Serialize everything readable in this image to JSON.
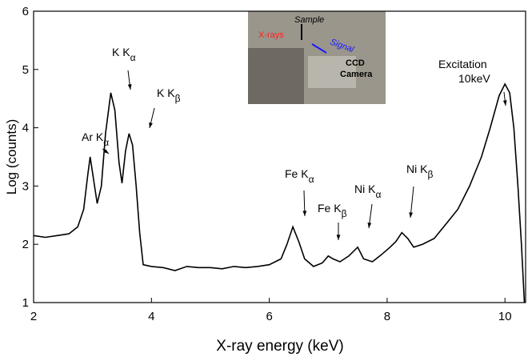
{
  "chart_data": {
    "type": "line",
    "x_label": "X-ray energy (keV)",
    "y_label": "Log (counts)",
    "xlim": [
      2,
      10.35
    ],
    "ylim": [
      1,
      6
    ],
    "xticks": [
      2,
      4,
      6,
      8,
      10
    ],
    "yticks": [
      1,
      2,
      3,
      4,
      5,
      6
    ],
    "series": [
      {
        "color": "#000000",
        "x": [
          2,
          2.2,
          2.4,
          2.6,
          2.75,
          2.85,
          2.92,
          2.96,
          3.02,
          3.08,
          3.15,
          3.22,
          3.31,
          3.38,
          3.45,
          3.5,
          3.56,
          3.62,
          3.68,
          3.74,
          3.8,
          3.86,
          4.0,
          4.2,
          4.4,
          4.6,
          4.8,
          5.0,
          5.2,
          5.4,
          5.6,
          5.8,
          6.0,
          6.2,
          6.3,
          6.4,
          6.5,
          6.6,
          6.75,
          6.9,
          7.0,
          7.08,
          7.2,
          7.35,
          7.5,
          7.6,
          7.75,
          7.9,
          8.05,
          8.15,
          8.25,
          8.35,
          8.45,
          8.6,
          8.8,
          9.0,
          9.2,
          9.4,
          9.6,
          9.75,
          9.9,
          10.0,
          10.08,
          10.15,
          10.22,
          10.28,
          10.33
        ],
        "values": [
          2.15,
          2.12,
          2.15,
          2.18,
          2.3,
          2.6,
          3.2,
          3.5,
          3.1,
          2.7,
          3.0,
          3.9,
          4.6,
          4.3,
          3.4,
          3.05,
          3.6,
          3.9,
          3.7,
          3.0,
          2.2,
          1.65,
          1.62,
          1.6,
          1.55,
          1.62,
          1.6,
          1.6,
          1.58,
          1.62,
          1.6,
          1.62,
          1.65,
          1.75,
          2.0,
          2.3,
          2.05,
          1.75,
          1.62,
          1.68,
          1.8,
          1.75,
          1.7,
          1.8,
          1.95,
          1.75,
          1.7,
          1.82,
          1.95,
          2.05,
          2.2,
          2.1,
          1.95,
          2.0,
          2.1,
          2.35,
          2.6,
          3.0,
          3.5,
          4.0,
          4.55,
          4.75,
          4.6,
          4.0,
          3.0,
          2.0,
          1.0
        ]
      }
    ],
    "annotations": [
      {
        "text": "Ar K",
        "sub": "α"
      },
      {
        "text": "K K",
        "sub": "α"
      },
      {
        "text": "K K",
        "sub": "β"
      },
      {
        "text": "Fe K",
        "sub": "α"
      },
      {
        "text": "Fe K",
        "sub": "β"
      },
      {
        "text": "Ni K",
        "sub": "α"
      },
      {
        "text": "Ni K",
        "sub": "β"
      },
      {
        "text": "Excitation",
        "sub": "10keV"
      }
    ],
    "inset": {
      "source": "X-rays",
      "sample": "Sample",
      "signal": "Signal",
      "detector": [
        "CCD",
        "Camera"
      ]
    }
  }
}
